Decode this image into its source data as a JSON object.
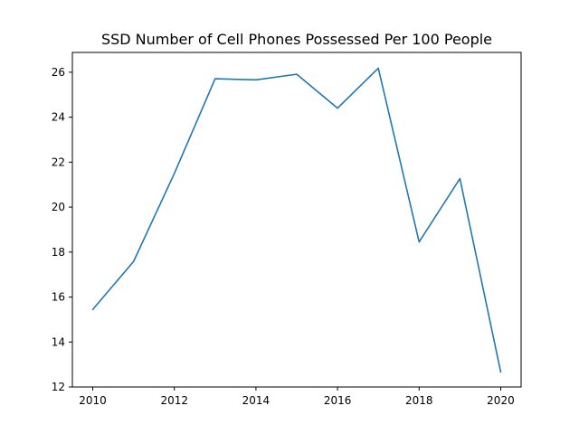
{
  "chart_data": {
    "type": "line",
    "title": "SSD Number of Cell Phones Possessed Per 100 People",
    "xlabel": "",
    "ylabel": "",
    "x": [
      2010,
      2011,
      2012,
      2013,
      2014,
      2015,
      2016,
      2017,
      2018,
      2019,
      2020
    ],
    "series": [
      {
        "values": [
          15.45,
          17.58,
          21.5,
          25.71,
          25.66,
          25.91,
          24.4,
          26.18,
          18.45,
          21.27,
          12.67
        ],
        "color": "#1f77b4"
      }
    ],
    "xlim": [
      2009.5,
      2020.5
    ],
    "ylim": [
      12,
      26.88
    ],
    "xticks": [
      2010,
      2012,
      2014,
      2016,
      2018,
      2020
    ],
    "yticks": [
      12,
      14,
      16,
      18,
      20,
      22,
      24,
      26
    ],
    "grid": false,
    "legend": "none"
  }
}
